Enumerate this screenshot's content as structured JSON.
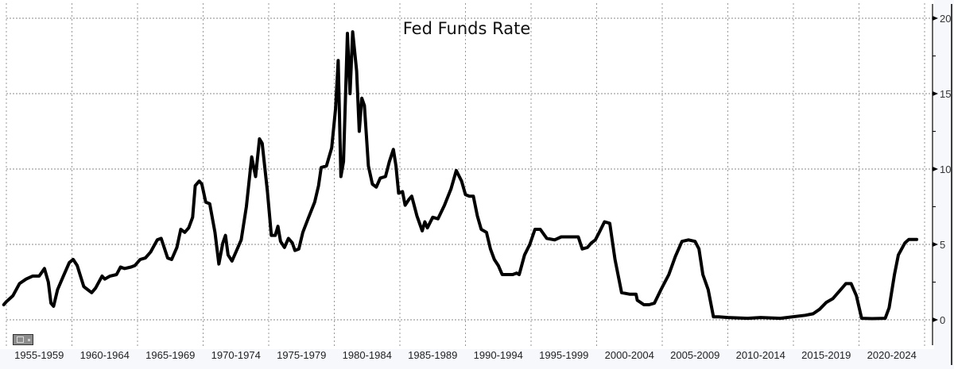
{
  "chart_data": {
    "type": "line",
    "title": "Fed Funds Rate",
    "xlabel": "",
    "ylabel": "",
    "x_tick_labels": [
      "1955-1959",
      "1960-1964",
      "1965-1969",
      "1970-1974",
      "1975-1979",
      "1980-1984",
      "1985-1989",
      "1990-1994",
      "1995-1999",
      "2000-2004",
      "2005-2009",
      "2010-2014",
      "2015-2019",
      "2020-2024"
    ],
    "xlim": [
      1955,
      2025
    ],
    "y_ticks": [
      "0",
      "5",
      "10",
      "15",
      "20"
    ],
    "ylim": [
      -1.5,
      20.5
    ],
    "y_axis_position": "right",
    "grid": true,
    "line_color": "#000000",
    "series": [
      {
        "x": [
          1954.8,
          1955.0,
          1955.5,
          1956.0,
          1956.5,
          1957.0,
          1957.5,
          1957.9,
          1958.2,
          1958.4,
          1958.6,
          1958.9,
          1959.3,
          1959.8,
          1960.1,
          1960.4,
          1960.9,
          1961.2,
          1961.5,
          1961.8,
          1962.3,
          1962.5,
          1962.9,
          1963.4,
          1963.7,
          1964.0,
          1964.5,
          1964.8,
          1965.2,
          1965.6,
          1966.0,
          1966.5,
          1966.8,
          1967.3,
          1967.6,
          1968.0,
          1968.3,
          1968.6,
          1968.9,
          1969.2,
          1969.4,
          1969.7,
          1969.9,
          1970.2,
          1970.5,
          1970.9,
          1971.2,
          1971.5,
          1971.7,
          1971.9,
          1972.2,
          1972.5,
          1972.9,
          1973.3,
          1973.7,
          1974.0,
          1974.3,
          1974.5,
          1974.9,
          1975.2,
          1975.5,
          1975.7,
          1975.9,
          1976.2,
          1976.5,
          1976.8,
          1977.0,
          1977.3,
          1977.6,
          1978.0,
          1978.5,
          1978.8,
          1979.0,
          1979.4,
          1979.8,
          1980.1,
          1980.3,
          1980.5,
          1980.7,
          1981.0,
          1981.2,
          1981.4,
          1981.7,
          1981.9,
          1982.1,
          1982.3,
          1982.6,
          1982.9,
          1983.2,
          1983.5,
          1983.9,
          1984.2,
          1984.5,
          1984.7,
          1984.9,
          1985.2,
          1985.4,
          1985.7,
          1985.9,
          1986.3,
          1986.7,
          1986.9,
          1987.1,
          1987.5,
          1987.9,
          1988.4,
          1988.9,
          1989.3,
          1989.7,
          1990.0,
          1990.3,
          1990.6,
          1990.9,
          1991.2,
          1991.6,
          1991.9,
          1992.2,
          1992.5,
          1992.8,
          1993.2,
          1993.6,
          1993.9,
          1994.1,
          1994.5,
          1994.9,
          1995.3,
          1995.7,
          1996.2,
          1996.8,
          1997.3,
          1997.9,
          1998.6,
          1998.9,
          1999.3,
          1999.6,
          1999.9,
          2000.2,
          2000.6,
          2001.0,
          2001.4,
          2001.9,
          2002.5,
          2003.0,
          2003.1,
          2003.6,
          2004.0,
          2004.4,
          2004.9,
          2005.5,
          2006.0,
          2006.5,
          2007.0,
          2007.5,
          2007.8,
          2008.1,
          2008.5,
          2008.9,
          2009.3,
          2010.0,
          2011.5,
          2012.5,
          2014.0,
          2015.9,
          2016.5,
          2017.0,
          2017.5,
          2018.0,
          2018.5,
          2019.0,
          2019.4,
          2019.8,
          2020.2,
          2021.0,
          2022.0,
          2022.3,
          2022.7,
          2023.0,
          2023.5,
          2023.8,
          2024.4
        ],
        "y": [
          1.0,
          1.2,
          1.6,
          2.4,
          2.7,
          2.9,
          2.9,
          3.4,
          2.5,
          1.1,
          0.9,
          2.0,
          2.8,
          3.8,
          4.0,
          3.6,
          2.2,
          2.0,
          1.8,
          2.1,
          2.9,
          2.7,
          2.9,
          3.0,
          3.5,
          3.4,
          3.5,
          3.6,
          4.0,
          4.1,
          4.5,
          5.3,
          5.4,
          4.1,
          4.0,
          4.8,
          6.0,
          5.8,
          6.1,
          6.8,
          8.9,
          9.2,
          9.0,
          7.8,
          7.7,
          5.8,
          3.7,
          5.1,
          5.6,
          4.3,
          3.9,
          4.5,
          5.3,
          7.5,
          10.8,
          9.5,
          12.0,
          11.7,
          8.5,
          5.6,
          5.6,
          6.2,
          5.2,
          4.8,
          5.4,
          5.1,
          4.6,
          4.7,
          5.8,
          6.7,
          7.8,
          8.9,
          10.1,
          10.2,
          11.4,
          14.0,
          17.2,
          9.5,
          10.5,
          19.0,
          15.0,
          19.1,
          16.5,
          12.5,
          14.7,
          14.2,
          10.2,
          9.0,
          8.8,
          9.4,
          9.5,
          10.5,
          11.3,
          10.2,
          8.4,
          8.5,
          7.6,
          8.0,
          8.2,
          6.9,
          5.9,
          6.5,
          6.1,
          6.8,
          6.7,
          7.6,
          8.7,
          9.9,
          9.2,
          8.3,
          8.2,
          8.2,
          6.9,
          6.0,
          5.8,
          4.7,
          4.0,
          3.6,
          3.0,
          3.0,
          3.0,
          3.1,
          3.0,
          4.3,
          5.0,
          6.0,
          6.0,
          5.4,
          5.3,
          5.5,
          5.5,
          5.5,
          4.7,
          4.8,
          5.1,
          5.3,
          5.8,
          6.5,
          6.4,
          4.0,
          1.8,
          1.7,
          1.7,
          1.3,
          1.0,
          1.0,
          1.1,
          2.0,
          3.0,
          4.2,
          5.2,
          5.3,
          5.2,
          4.7,
          3.0,
          2.0,
          0.2,
          0.2,
          0.15,
          0.1,
          0.15,
          0.1,
          0.3,
          0.4,
          0.7,
          1.15,
          1.4,
          1.9,
          2.4,
          2.4,
          1.6,
          0.1,
          0.08,
          0.1,
          0.8,
          3.0,
          4.3,
          5.1,
          5.33,
          5.33
        ]
      }
    ]
  }
}
